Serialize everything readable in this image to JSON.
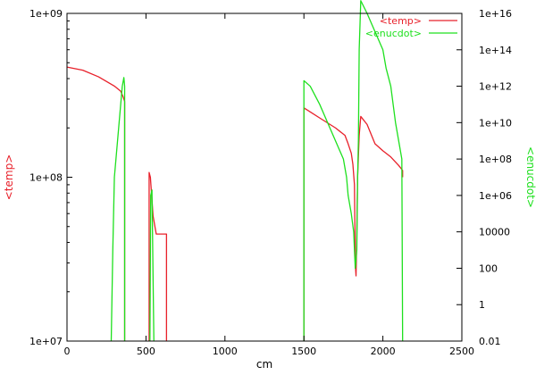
{
  "chart_data": {
    "type": "line",
    "title": "",
    "xlabel": "cm",
    "ylabel_left": "<temp>",
    "ylabel_right": "<enucdot>",
    "xlim": [
      0,
      2500
    ],
    "x_ticks": [
      {
        "value": 0,
        "label": "0"
      },
      {
        "value": 500,
        "label": "500"
      },
      {
        "value": 1000,
        "label": "1000"
      },
      {
        "value": 1500,
        "label": "1500"
      },
      {
        "value": 2000,
        "label": "2000"
      },
      {
        "value": 2500,
        "label": "2500"
      }
    ],
    "y_left": {
      "scale": "log",
      "range": [
        10000000,
        1000000000
      ],
      "ticks": [
        {
          "value": 10000000,
          "label": "1e+07"
        },
        {
          "value": 100000000,
          "label": "1e+08"
        },
        {
          "value": 1000000000,
          "label": "1e+09"
        }
      ]
    },
    "y_right": {
      "scale": "log",
      "range": [
        0.01,
        10000000000000000
      ],
      "ticks": [
        {
          "value": 0.01,
          "label": "0.01"
        },
        {
          "value": 1,
          "label": "1"
        },
        {
          "value": 100,
          "label": "100"
        },
        {
          "value": 10000,
          "label": "10000"
        },
        {
          "value": 1000000,
          "label": "1e+06"
        },
        {
          "value": 100000000,
          "label": "1e+08"
        },
        {
          "value": 10000000000,
          "label": "1e+10"
        },
        {
          "value": 1000000000000,
          "label": "1e+12"
        },
        {
          "value": 100000000000000,
          "label": "1e+14"
        },
        {
          "value": 10000000000000000,
          "label": "1e+16"
        }
      ]
    },
    "legend_position": "top-right",
    "series": [
      {
        "name": "<temp>",
        "color": "#e8202a",
        "axis": "left",
        "segments": [
          [
            [
              0,
              470000000
            ],
            [
              100,
              450000000
            ],
            [
              200,
              410000000
            ],
            [
              300,
              360000000
            ],
            [
              340,
              335000000
            ],
            [
              355,
              310000000
            ],
            [
              365,
              290000000
            ],
            [
              365,
              10000000
            ]
          ],
          [
            [
              520,
              10000000
            ],
            [
              520,
              107000000
            ],
            [
              528,
              100000000
            ],
            [
              535,
              80000000
            ],
            [
              545,
              58000000
            ],
            [
              565,
              45000000
            ],
            [
              630,
              45000000
            ],
            [
              630,
              10000000
            ]
          ],
          [
            [
              1500,
              10000000
            ],
            [
              1500,
              265000000
            ],
            [
              1600,
              230000000
            ],
            [
              1700,
              200000000
            ],
            [
              1760,
              180000000
            ],
            [
              1780,
              160000000
            ],
            [
              1800,
              140000000
            ],
            [
              1810,
              120000000
            ],
            [
              1820,
              90000000
            ],
            [
              1825,
              30000000
            ],
            [
              1830,
              25000000
            ],
            [
              1833,
              35000000
            ],
            [
              1840,
              100000000
            ],
            [
              1850,
              180000000
            ],
            [
              1860,
              235000000
            ],
            [
              1900,
              210000000
            ],
            [
              1950,
              160000000
            ],
            [
              2000,
              145000000
            ],
            [
              2050,
              133000000
            ],
            [
              2100,
              118000000
            ],
            [
              2125,
              110000000
            ],
            [
              2125,
              100000000
            ]
          ]
        ]
      },
      {
        "name": "<enucdot>",
        "color": "#1ee01e",
        "axis": "right",
        "segments": [
          [
            [
              280,
              0.01
            ],
            [
              290,
              1000
            ],
            [
              300,
              10000000
            ],
            [
              310,
              100000000
            ],
            [
              330,
              10000000000
            ],
            [
              350,
              1000000000000
            ],
            [
              360,
              3000000000000
            ],
            [
              365,
              1000000000000
            ],
            [
              365,
              0.01
            ]
          ],
          [
            [
              525,
              0.01
            ],
            [
              530,
              1000000
            ],
            [
              538,
              2000000
            ],
            [
              550,
              0.01
            ]
          ],
          [
            [
              1500,
              0.01
            ],
            [
              1500,
              2000000000000
            ],
            [
              1540,
              1000000000000
            ],
            [
              1600,
              100000000000
            ],
            [
              1650,
              10000000000
            ],
            [
              1700,
              1000000000
            ],
            [
              1750,
              100000000
            ],
            [
              1770,
              10000000
            ],
            [
              1780,
              1000000
            ],
            [
              1800,
              100000
            ],
            [
              1815,
              10000
            ],
            [
              1825,
              100
            ],
            [
              1835,
              1000
            ],
            [
              1840,
              10000000
            ],
            [
              1845,
              1000000000
            ],
            [
              1850,
              100000000000000
            ],
            [
              1860,
              50000000000000000
            ],
            [
              1900,
              10000000000000000
            ],
            [
              1950,
              1000000000000000
            ],
            [
              2000,
              100000000000000
            ],
            [
              2020,
              10000000000000
            ],
            [
              2050,
              1000000000000
            ],
            [
              2080,
              10000000000
            ],
            [
              2100,
              1000000000
            ],
            [
              2120,
              100000000
            ],
            [
              2125,
              0.01
            ]
          ]
        ]
      }
    ]
  }
}
